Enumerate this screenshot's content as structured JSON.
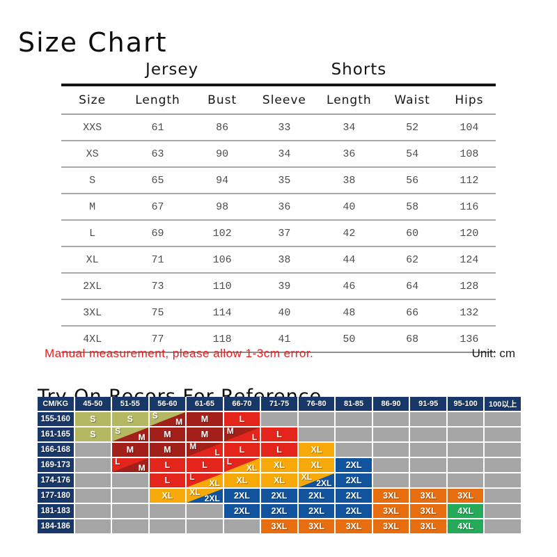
{
  "title": "Size Chart",
  "note": {
    "text": "Manual measurement, please allow 1-3cm error.",
    "unit_label": "Unit: cm",
    "note_color": "#e41e1e"
  },
  "try_on": {
    "heading": "Try On Recors For Reference"
  },
  "chart_data": [
    {
      "type": "table",
      "title": "Size Chart",
      "unit": "cm",
      "group_headers": [
        {
          "label": "Jersey",
          "columns": [
            "Length",
            "Bust",
            "Sleeve"
          ]
        },
        {
          "label": "Shorts",
          "columns": [
            "Length",
            "Waist",
            "Hips"
          ]
        }
      ],
      "columns": [
        "Size",
        "Length",
        "Bust",
        "Sleeve",
        "Length",
        "Waist",
        "Hips"
      ],
      "rows": [
        [
          "XXS",
          "61",
          "86",
          "33",
          "34",
          "52",
          "104"
        ],
        [
          "XS",
          "63",
          "90",
          "34",
          "36",
          "54",
          "108"
        ],
        [
          "S",
          "65",
          "94",
          "35",
          "38",
          "56",
          "112"
        ],
        [
          "M",
          "67",
          "98",
          "36",
          "40",
          "58",
          "116"
        ],
        [
          "L",
          "69",
          "102",
          "37",
          "42",
          "60",
          "120"
        ],
        [
          "XL",
          "71",
          "106",
          "38",
          "44",
          "62",
          "124"
        ],
        [
          "2XL",
          "73",
          "110",
          "39",
          "46",
          "64",
          "128"
        ],
        [
          "3XL",
          "75",
          "114",
          "40",
          "48",
          "66",
          "132"
        ],
        [
          "4XL",
          "77",
          "118",
          "41",
          "50",
          "68",
          "136"
        ]
      ]
    },
    {
      "type": "table",
      "title": "Try On Recors For Reference",
      "corner_label": "CM/KG",
      "columns": [
        "45-50",
        "51-55",
        "56-60",
        "61-65",
        "66-70",
        "71-75",
        "76-80",
        "81-85",
        "86-90",
        "91-95",
        "95-100",
        "100以上"
      ],
      "rows": [
        {
          "label": "155-160",
          "cells": [
            "S",
            "S",
            "S/M",
            "M",
            "L",
            "",
            "",
            "",
            "",
            "",
            "",
            ""
          ]
        },
        {
          "label": "161-165",
          "cells": [
            "S",
            "S/M",
            "M",
            "M",
            "M/L",
            "L",
            "",
            "",
            "",
            "",
            "",
            ""
          ]
        },
        {
          "label": "166-168",
          "cells": [
            "",
            "M",
            "M",
            "M/L",
            "L",
            "L",
            "XL",
            "",
            "",
            "",
            "",
            ""
          ]
        },
        {
          "label": "169-173",
          "cells": [
            "",
            "L/M",
            "L",
            "L",
            "L/XL",
            "XL",
            "XL",
            "2XL",
            "",
            "",
            "",
            ""
          ]
        },
        {
          "label": "174-176",
          "cells": [
            "",
            "",
            "L",
            "L/XL",
            "XL",
            "XL",
            "XL/2XL",
            "2XL",
            "",
            "",
            "",
            ""
          ]
        },
        {
          "label": "177-180",
          "cells": [
            "",
            "",
            "XL",
            "XL/2XL",
            "2XL",
            "2XL",
            "2XL",
            "2XL",
            "3XL",
            "3XL",
            "3XL",
            ""
          ]
        },
        {
          "label": "181-183",
          "cells": [
            "",
            "",
            "",
            "",
            "2XL",
            "2XL",
            "2XL",
            "2XL",
            "3XL",
            "3XL",
            "4XL",
            ""
          ]
        },
        {
          "label": "184-186",
          "cells": [
            "",
            "",
            "",
            "",
            "",
            "3XL",
            "3XL",
            "3XL",
            "3XL",
            "3XL",
            "4XL",
            ""
          ]
        }
      ],
      "size_colors": {
        "S": "#b5b863",
        "M": "#a22019",
        "L": "#e4251c",
        "XL": "#f7a90a",
        "2XL": "#11539d",
        "3XL": "#e76e10",
        "4XL": "#24aa59"
      },
      "empty_color": "#a5a5a5",
      "header_color": "#18386a"
    }
  ]
}
